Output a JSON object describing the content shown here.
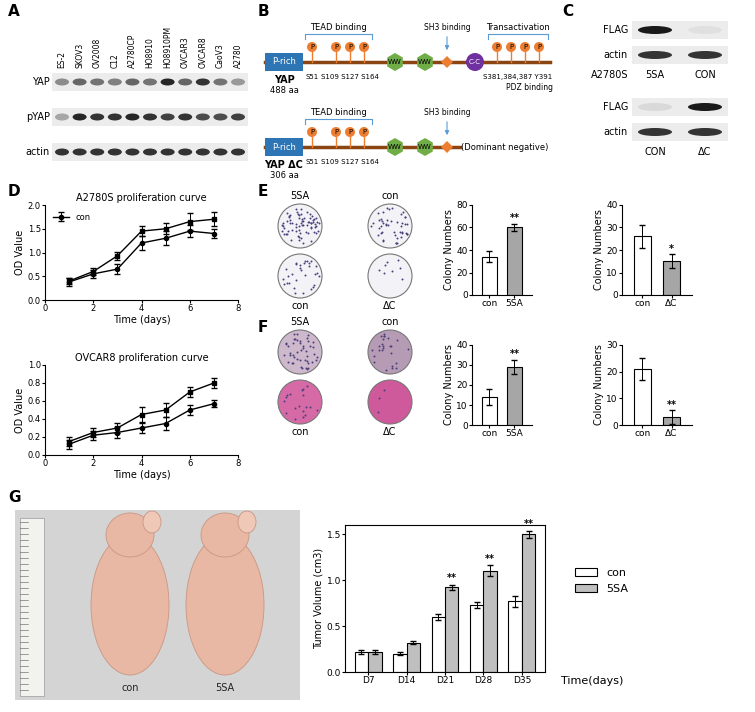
{
  "panel_labels": [
    "A",
    "B",
    "C",
    "D",
    "E",
    "F",
    "G"
  ],
  "blot_A": {
    "lanes": [
      "ES-2",
      "SKOV3",
      "OV2008",
      "C12",
      "A2780CP",
      "HO8910",
      "HO8910PM",
      "OVCAR3",
      "OVCAR8",
      "CaoV3",
      "A2780"
    ],
    "rows": [
      "YAP",
      "pYAP",
      "actin"
    ]
  },
  "schematic_B": {
    "phospho_mark": "P",
    "constructs": [
      {
        "name": "YAP",
        "length": "488 aa",
        "domains": [
          "P-rich",
          "WW",
          "WW",
          "C-C"
        ],
        "sites": [
          "S51",
          "S109 S127 S164",
          "S381,384,387 Y391"
        ],
        "regions": [
          "TEAD binding",
          "SH3 binding",
          "Transactivation",
          "PDZ binding"
        ]
      },
      {
        "name": "YAP ΔC",
        "length": "306 aa",
        "domains": [
          "P-rich",
          "WW",
          "WW"
        ],
        "sites": [
          "S51",
          "S109 S127 S164"
        ],
        "regions": [
          "TEAD binding",
          "SH3 binding"
        ],
        "note": "(Dominant negative)"
      }
    ]
  },
  "blot_C": [
    {
      "cell_line": "A2780S",
      "lanes": [
        "5SA",
        "CON"
      ],
      "rows": [
        "FLAG",
        "actin"
      ]
    },
    {
      "lanes": [
        "CON",
        "ΔC"
      ],
      "rows": [
        "FLAG",
        "actin"
      ]
    }
  ],
  "colony_images": [
    {
      "top": [
        "5SA",
        "con"
      ],
      "bottom": [
        "con",
        "ΔC"
      ]
    },
    {
      "top": [
        "5SA",
        "con"
      ],
      "bottom": [
        "con",
        "ΔC"
      ]
    }
  ],
  "mouse_photo": {
    "labels": [
      "con",
      "5SA"
    ]
  },
  "chart_data": [
    {
      "type": "line",
      "title": "A2780S proliferation curve",
      "x_label": "Time (days)",
      "y_label": "OD Value",
      "x": [
        1,
        2,
        3,
        4,
        5,
        6,
        7
      ],
      "xlim": [
        0,
        8
      ],
      "xticks": [
        0,
        2,
        4,
        6,
        8
      ],
      "ylim": [
        0,
        2.0
      ],
      "yticks": [
        {
          "value": 0,
          "label": "0.0"
        },
        {
          "value": 0.5,
          "label": "0.5"
        },
        {
          "value": 1.0,
          "label": "1.0"
        },
        {
          "value": 1.5,
          "label": "1.5"
        },
        {
          "value": 2.0,
          "label": "2.0"
        }
      ],
      "legend": "upper left",
      "series": [
        {
          "name": "con",
          "color": "#000000",
          "marker": "circle",
          "values": [
            0.38,
            0.55,
            0.65,
            1.2,
            1.3,
            1.45,
            1.4
          ],
          "errors": [
            0.08,
            0.08,
            0.1,
            0.15,
            0.15,
            0.12,
            0.1
          ]
        },
        {
          "color": "#000000",
          "marker": "square",
          "values": [
            0.4,
            0.6,
            0.93,
            1.45,
            1.5,
            1.65,
            1.7
          ],
          "errors": [
            0.06,
            0.08,
            0.08,
            0.1,
            0.12,
            0.18,
            0.15
          ]
        }
      ]
    },
    {
      "type": "line",
      "title": "OVCAR8 proliferation curve",
      "x_label": "Time (days)",
      "y_label": "OD Value",
      "x": [
        1,
        2,
        3,
        4,
        5,
        6,
        7
      ],
      "xlim": [
        0,
        8
      ],
      "xticks": [
        0,
        2,
        4,
        6,
        8
      ],
      "ylim": [
        0,
        1.0
      ],
      "yticks": [
        {
          "value": 0,
          "label": "0.0"
        },
        {
          "value": 0.2,
          "label": "0.2"
        },
        {
          "value": 0.4,
          "label": "0.4"
        },
        {
          "value": 0.6,
          "label": "0.6"
        },
        {
          "value": 0.8,
          "label": "0.8"
        },
        {
          "value": 1.0,
          "label": "1.0"
        }
      ],
      "series": [
        {
          "color": "#000000",
          "marker": "circle",
          "values": [
            0.12,
            0.22,
            0.25,
            0.3,
            0.35,
            0.5,
            0.57
          ],
          "errors": [
            0.05,
            0.05,
            0.06,
            0.06,
            0.07,
            0.05,
            0.04
          ]
        },
        {
          "color": "#000000",
          "marker": "square",
          "values": [
            0.15,
            0.25,
            0.3,
            0.45,
            0.5,
            0.7,
            0.8
          ],
          "errors": [
            0.05,
            0.05,
            0.06,
            0.08,
            0.08,
            0.06,
            0.06
          ]
        }
      ]
    },
    {
      "type": "bar",
      "y_label": "Colony Numbers",
      "categories": [
        "con",
        "5SA"
      ],
      "values": [
        34,
        60
      ],
      "errors": [
        5,
        3
      ],
      "colors": [
        "#ffffff",
        "#a6a6a6"
      ],
      "ylim": [
        0,
        80
      ],
      "yticks": [
        0,
        20,
        40,
        60,
        80
      ],
      "annotations": [
        {
          "category": "5SA",
          "text": "**"
        }
      ]
    },
    {
      "type": "bar",
      "y_label": "Colony Numbers",
      "categories": [
        "con",
        "ΔC"
      ],
      "values": [
        26,
        15
      ],
      "errors": [
        5,
        3
      ],
      "colors": [
        "#ffffff",
        "#a6a6a6"
      ],
      "ylim": [
        0,
        40
      ],
      "yticks": [
        0,
        10,
        20,
        30,
        40
      ],
      "annotations": [
        {
          "category": "ΔC",
          "text": "*"
        }
      ]
    },
    {
      "type": "bar",
      "y_label": "Colony Numbers",
      "categories": [
        "con",
        "5SA"
      ],
      "values": [
        14,
        29
      ],
      "errors": [
        4,
        3.5
      ],
      "colors": [
        "#ffffff",
        "#a6a6a6"
      ],
      "ylim": [
        0,
        40
      ],
      "yticks": [
        0,
        10,
        20,
        30,
        40
      ],
      "annotations": [
        {
          "category": "5SA",
          "text": "**"
        }
      ]
    },
    {
      "type": "bar",
      "y_label": "Colony Numbers",
      "categories": [
        "con",
        "ΔC"
      ],
      "values": [
        21,
        3
      ],
      "errors": [
        4,
        2.5
      ],
      "colors": [
        "#ffffff",
        "#a6a6a6"
      ],
      "ylim": [
        0,
        30
      ],
      "yticks": [
        0,
        10,
        20,
        30
      ],
      "annotations": [
        {
          "category": "ΔC",
          "text": "**"
        }
      ]
    },
    {
      "type": "bar",
      "y_label": "Tumor Volume (cm3)",
      "x_label": "Time(days)",
      "categories": [
        "D7",
        "D14",
        "D21",
        "D28",
        "D35"
      ],
      "series": [
        {
          "name": "con",
          "color": "#ffffff",
          "values": [
            0.22,
            0.2,
            0.6,
            0.73,
            0.77
          ],
          "errors": [
            0.02,
            0.02,
            0.03,
            0.03,
            0.06
          ]
        },
        {
          "name": "5SA",
          "color": "#bfbfbf",
          "values": [
            0.22,
            0.32,
            0.92,
            1.1,
            1.5
          ],
          "errors": [
            0.02,
            0.02,
            0.03,
            0.06,
            0.04
          ]
        }
      ],
      "ylim": [
        0,
        1.6
      ],
      "yticks": [
        {
          "value": 0,
          "label": "0.0"
        },
        {
          "value": 0.5,
          "label": "0.5"
        },
        {
          "value": 1.0,
          "label": "1.0"
        },
        {
          "value": 1.5,
          "label": "1.5"
        }
      ],
      "legend": "center left",
      "annotations": [
        {
          "category": "D21",
          "series": "5SA",
          "text": "**"
        },
        {
          "category": "D28",
          "series": "5SA",
          "text": "**"
        },
        {
          "category": "D35",
          "series": "5SA",
          "text": "**"
        }
      ]
    }
  ]
}
